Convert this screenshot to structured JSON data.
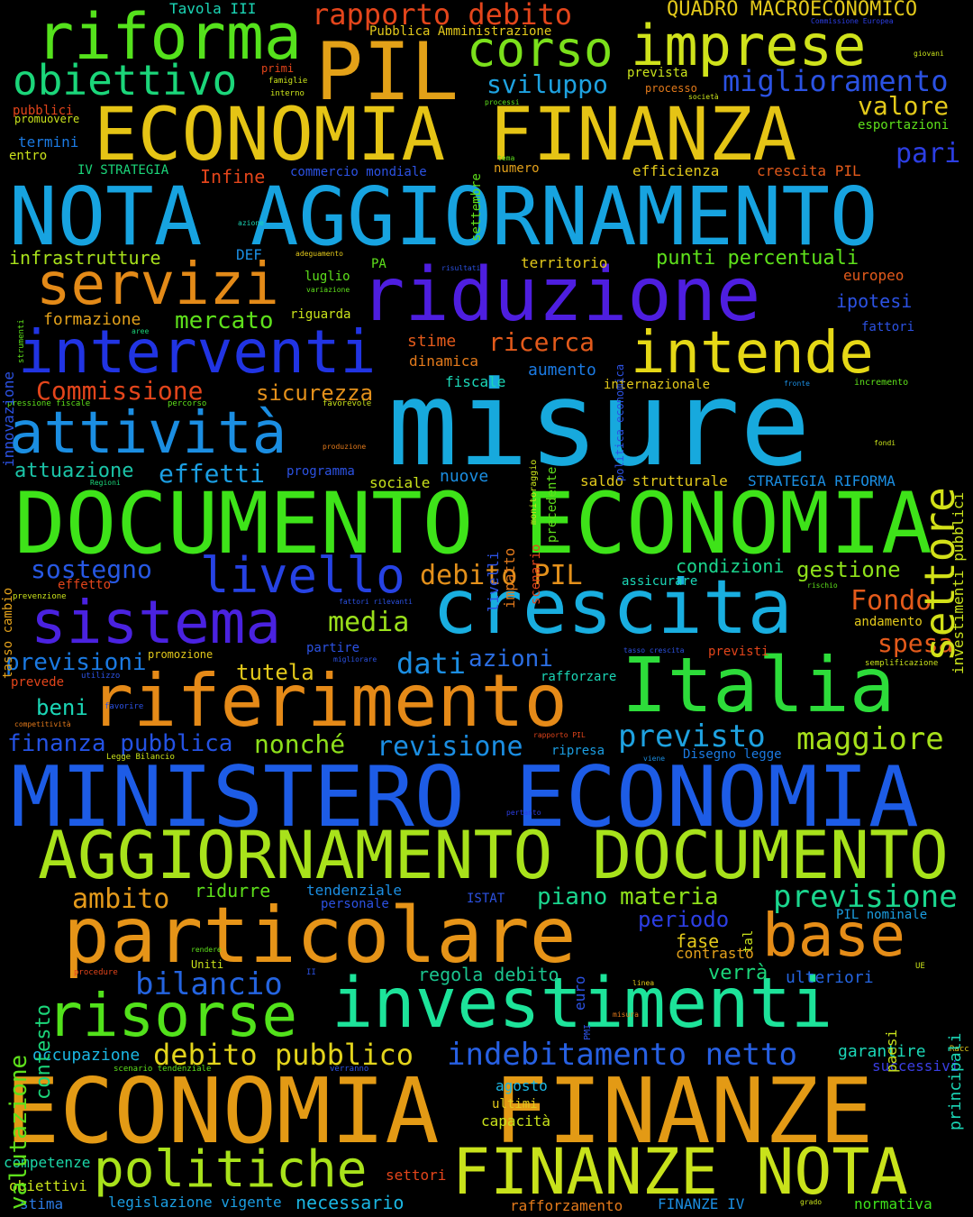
{
  "background": "#000000",
  "words": [
    {
      "text": "misure",
      "color": "#17a9dd"
    },
    {
      "text": "MINISTERO ECONOMIA",
      "color": "#1d5ce6"
    },
    {
      "text": "NOTA AGGIORNAMENTO",
      "color": "#17a3e0"
    },
    {
      "text": "ECONOMIA FINANZE",
      "color": "#e39a15"
    },
    {
      "text": "DOCUMENTO ECONOMIA",
      "color": "#3ee319"
    },
    {
      "text": "ECONOMIA FINANZA",
      "color": "#e5c415"
    },
    {
      "text": "AGGIORNAMENTO DOCUMENTO",
      "color": "#a8e21b"
    },
    {
      "text": "crescita",
      "color": "#19aee0"
    },
    {
      "text": "particolare",
      "color": "#e69418"
    },
    {
      "text": "riduzione",
      "color": "#4e1ee0"
    },
    {
      "text": "investimenti",
      "color": "#1de39a"
    },
    {
      "text": "riferimento",
      "color": "#e58a18"
    },
    {
      "text": "Italia",
      "color": "#2ddc3a"
    },
    {
      "text": "FINANZE NOTA",
      "color": "#c8e21b"
    },
    {
      "text": "sistema",
      "color": "#4a22e0"
    },
    {
      "text": "interventi",
      "color": "#2134e3"
    },
    {
      "text": "attività",
      "color": "#1b8ee2"
    },
    {
      "text": "PIL",
      "color": "#e3a118"
    },
    {
      "text": "riforma",
      "color": "#55e21c"
    },
    {
      "text": "imprese",
      "color": "#cfe21b"
    },
    {
      "text": "servizi",
      "color": "#e38a18"
    },
    {
      "text": "risorse",
      "color": "#52e21b"
    },
    {
      "text": "politiche",
      "color": "#a8e21b"
    },
    {
      "text": "intende",
      "color": "#e5d816"
    },
    {
      "text": "settore",
      "color": "#d2e018"
    },
    {
      "text": "base",
      "color": "#e58d18"
    },
    {
      "text": "livello",
      "color": "#2642e3"
    },
    {
      "text": "corso",
      "color": "#7be01b"
    },
    {
      "text": "obiettivo",
      "color": "#1bd67a"
    },
    {
      "text": "maggiore",
      "color": "#a6e01b"
    },
    {
      "text": "previsione",
      "color": "#1bd68e"
    },
    {
      "text": "indebitamento netto",
      "color": "#2760e3"
    },
    {
      "text": "debito pubblico",
      "color": "#e3d41c"
    },
    {
      "text": "bilancio",
      "color": "#2464e0"
    },
    {
      "text": "previsto",
      "color": "#1ea2e0"
    },
    {
      "text": "revisione",
      "color": "#1b8ee2"
    },
    {
      "text": "ricerca",
      "color": "#e35a1b"
    },
    {
      "text": "rapporto debito",
      "color": "#e3451b"
    },
    {
      "text": "miglioramento",
      "color": "#2b52e3"
    },
    {
      "text": "QUADRO MACROECONOMICO",
      "color": "#e3c91b"
    },
    {
      "text": "sviluppo",
      "color": "#1ea2e0"
    },
    {
      "text": "valore",
      "color": "#e3c91b"
    },
    {
      "text": "pari",
      "color": "#2c3ee3"
    },
    {
      "text": "Commissione",
      "color": "#e3451b"
    },
    {
      "text": "sicurezza",
      "color": "#e3901b"
    },
    {
      "text": "effetti",
      "color": "#1b9ee2"
    },
    {
      "text": "attuazione",
      "color": "#1bc4a8"
    },
    {
      "text": "sostegno",
      "color": "#2758e3"
    },
    {
      "text": "debito PIL",
      "color": "#e3901b"
    },
    {
      "text": "media",
      "color": "#9ae01b"
    },
    {
      "text": "Fondo",
      "color": "#e35a1b"
    },
    {
      "text": "spesa",
      "color": "#e35a1b"
    },
    {
      "text": "gestione",
      "color": "#8ee01b"
    },
    {
      "text": "condizioni",
      "color": "#1bd68e"
    },
    {
      "text": "dati",
      "color": "#1b8ee2"
    },
    {
      "text": "azioni",
      "color": "#2b6ee3"
    },
    {
      "text": "tutela",
      "color": "#e3c91b"
    },
    {
      "text": "previsioni",
      "color": "#1b7ae2"
    },
    {
      "text": "beni",
      "color": "#1bd6b6"
    },
    {
      "text": "finanza pubblica",
      "color": "#2452e3"
    },
    {
      "text": "nonché",
      "color": "#8ee01b"
    },
    {
      "text": "ambito",
      "color": "#e39a1b"
    },
    {
      "text": "ridurre",
      "color": "#5ee01b"
    },
    {
      "text": "piano",
      "color": "#1bd68e"
    },
    {
      "text": "materia",
      "color": "#8ee01b"
    },
    {
      "text": "periodo",
      "color": "#2c3ee3"
    },
    {
      "text": "fase",
      "color": "#e3c91b"
    },
    {
      "text": "contrasto",
      "color": "#e3a11b"
    },
    {
      "text": "verrà",
      "color": "#1bd67a"
    },
    {
      "text": "ulteriori",
      "color": "#2464e0"
    },
    {
      "text": "regola debito",
      "color": "#1bc48e"
    },
    {
      "text": "occupazione",
      "color": "#1bb6e2"
    },
    {
      "text": "garantire",
      "color": "#1bd6b6"
    },
    {
      "text": "successivi",
      "color": "#3a3ee3"
    },
    {
      "text": "agosto",
      "color": "#1bb6e2"
    },
    {
      "text": "ultimi",
      "color": "#e3c91b"
    },
    {
      "text": "capacità",
      "color": "#c9e21b"
    },
    {
      "text": "competenze",
      "color": "#1bd6a8"
    },
    {
      "text": "obiettivi",
      "color": "#c9e21b"
    },
    {
      "text": "settori",
      "color": "#e3451b"
    },
    {
      "text": "stima",
      "color": "#2b7ae3"
    },
    {
      "text": "legislazione vigente",
      "color": "#1b9ee2"
    },
    {
      "text": "necessario",
      "color": "#1bb6e2"
    },
    {
      "text": "rafforzamento",
      "color": "#e37a1b"
    },
    {
      "text": "FINANZE IV",
      "color": "#1b8ee2"
    },
    {
      "text": "normativa",
      "color": "#3ee31b"
    },
    {
      "text": "formazione",
      "color": "#e3a11b"
    },
    {
      "text": "mercato",
      "color": "#5ee01b"
    },
    {
      "text": "infrastrutture",
      "color": "#a8e21b"
    },
    {
      "text": "punti percentuali",
      "color": "#5ee01b"
    },
    {
      "text": "territorio",
      "color": "#e3c91b"
    },
    {
      "text": "europeo",
      "color": "#e35a1b"
    },
    {
      "text": "ipotesi",
      "color": "#2c52e3"
    },
    {
      "text": "stime",
      "color": "#e35a1b"
    },
    {
      "text": "dinamica",
      "color": "#e37a1b"
    },
    {
      "text": "aumento",
      "color": "#1b7ae2"
    },
    {
      "text": "fiscale",
      "color": "#1bd6b6"
    },
    {
      "text": "internazionale",
      "color": "#e3c91b"
    },
    {
      "text": "nuove",
      "color": "#1b8ee2"
    },
    {
      "text": "sociale",
      "color": "#c9e21b"
    },
    {
      "text": "saldo strutturale",
      "color": "#e3c91b"
    },
    {
      "text": "STRATEGIA RIFORMA",
      "color": "#1b8ee2"
    },
    {
      "text": "programma",
      "color": "#2c52e3"
    },
    {
      "text": "assicurare",
      "color": "#1bd6b6"
    },
    {
      "text": "andamento",
      "color": "#e3c91b"
    },
    {
      "text": "partire",
      "color": "#2c52e3"
    },
    {
      "text": "previsti",
      "color": "#e3451b"
    },
    {
      "text": "rafforzare",
      "color": "#1bd6b6"
    },
    {
      "text": "ripresa",
      "color": "#1b9ee2"
    },
    {
      "text": "Disegno legge",
      "color": "#1b7ae2"
    },
    {
      "text": "prevede",
      "color": "#e3451b"
    },
    {
      "text": "promozione",
      "color": "#e3c91b"
    },
    {
      "text": "Tavola III",
      "color": "#1bd6b6"
    },
    {
      "text": "Pubblica Amministrazione",
      "color": "#e3c91b"
    },
    {
      "text": "primi",
      "color": "#e3451b"
    },
    {
      "text": "famiglie",
      "color": "#c9e21b"
    },
    {
      "text": "interno",
      "color": "#c9e21b"
    },
    {
      "text": "pubblici",
      "color": "#e3451b"
    },
    {
      "text": "promuovere",
      "color": "#c9e21b"
    },
    {
      "text": "termini",
      "color": "#1b7ae2"
    },
    {
      "text": "entro",
      "color": "#c9e21b"
    },
    {
      "text": "IV STRATEGIA",
      "color": "#1bd67a"
    },
    {
      "text": "Infine",
      "color": "#e3451b"
    },
    {
      "text": "commercio mondiale",
      "color": "#2c52e3"
    },
    {
      "text": "numero",
      "color": "#e3a11b"
    },
    {
      "text": "efficienza",
      "color": "#e3c91b"
    },
    {
      "text": "crescita PIL",
      "color": "#e35a1b"
    },
    {
      "text": "prevista",
      "color": "#c9e21b"
    },
    {
      "text": "processo",
      "color": "#e37a1b"
    },
    {
      "text": "esportazioni",
      "color": "#5ee01b"
    },
    {
      "text": "processi",
      "color": "#5ee01b"
    },
    {
      "text": "società",
      "color": "#c9e21b"
    },
    {
      "text": "giovani",
      "color": "#c9e21b"
    },
    {
      "text": "Commissione Europea",
      "color": "#2c3ee3"
    },
    {
      "text": "azione",
      "color": "#1bd6b6"
    },
    {
      "text": "DEF",
      "color": "#1b8ee2"
    },
    {
      "text": "adeguamento",
      "color": "#e3c91b"
    },
    {
      "text": "luglio",
      "color": "#5ee01b"
    },
    {
      "text": "variazione",
      "color": "#5ee01b"
    },
    {
      "text": "PA",
      "color": "#5ee01b"
    },
    {
      "text": "risultati",
      "color": "#2c52e3"
    },
    {
      "text": "riguarda",
      "color": "#c9e21b"
    },
    {
      "text": "aree",
      "color": "#1bd67a"
    },
    {
      "text": "fattori",
      "color": "#2c52e3"
    },
    {
      "text": "fronte",
      "color": "#1b8ee2"
    },
    {
      "text": "incremento",
      "color": "#5ee01b"
    },
    {
      "text": "pressione fiscale",
      "color": "#5ee01b"
    },
    {
      "text": "percorso",
      "color": "#5ee01b"
    },
    {
      "text": "favorevole",
      "color": "#c9e21b"
    },
    {
      "text": "produzione",
      "color": "#e37a1b"
    },
    {
      "text": "fondi",
      "color": "#c9e21b"
    },
    {
      "text": "Regioni",
      "color": "#1bd67a"
    },
    {
      "text": "effetto",
      "color": "#e3451b"
    },
    {
      "text": "prevenzione",
      "color": "#c9e21b"
    },
    {
      "text": "fattori rilevanti",
      "color": "#2c52e3"
    },
    {
      "text": "rischio",
      "color": "#5ee01b"
    },
    {
      "text": "migliorare",
      "color": "#2c52e3"
    },
    {
      "text": "tasso crescita",
      "color": "#2c52e3"
    },
    {
      "text": "semplificazione",
      "color": "#c9e21b"
    },
    {
      "text": "utilizzo",
      "color": "#2c52e3"
    },
    {
      "text": "favorire",
      "color": "#2c52e3"
    },
    {
      "text": "competitività",
      "color": "#e37a1b"
    },
    {
      "text": "rapporto PIL",
      "color": "#e3451b"
    },
    {
      "text": "Legge Bilancio",
      "color": "#c9e21b"
    },
    {
      "text": "viene",
      "color": "#1b8ee2"
    },
    {
      "text": "pertanto",
      "color": "#2c3ee3"
    },
    {
      "text": "tendenziale",
      "color": "#1b8ee2"
    },
    {
      "text": "personale",
      "color": "#2c52e3"
    },
    {
      "text": "ISTAT",
      "color": "#2c52e3"
    },
    {
      "text": "PIL nominale",
      "color": "#1b9ee2"
    },
    {
      "text": "rendere",
      "color": "#5ee01b"
    },
    {
      "text": "Uniti",
      "color": "#c9e21b"
    },
    {
      "text": "procedure",
      "color": "#e3451b"
    },
    {
      "text": "II",
      "color": "#2c52e3"
    },
    {
      "text": "linea",
      "color": "#e3c91b"
    },
    {
      "text": "misura",
      "color": "#e37a1b"
    },
    {
      "text": "UE",
      "color": "#c9e21b"
    },
    {
      "text": "scenario tendenziale",
      "color": "#5ee01b"
    },
    {
      "text": "verranno",
      "color": "#2c52e3"
    },
    {
      "text": "Racc",
      "color": "#e3c91b"
    },
    {
      "text": "grado",
      "color": "#c9e21b"
    },
    {
      "text": "tema",
      "color": "#5ee01b"
    },
    {
      "text": "settembre",
      "color": "#5ee01b"
    },
    {
      "text": "innovazione",
      "color": "#2c52e3"
    },
    {
      "text": "strumenti",
      "color": "#5ee01b"
    },
    {
      "text": "politica economica",
      "color": "#2c52e3"
    },
    {
      "text": "investimenti pubblici",
      "color": "#c9e21b"
    },
    {
      "text": "monitoraggio",
      "color": "#c9e21b"
    },
    {
      "text": "precedente",
      "color": "#5ee01b"
    },
    {
      "text": "tasso cambio",
      "color": "#e3a11b"
    },
    {
      "text": "livelli",
      "color": "#2c52e3"
    },
    {
      "text": "impatto",
      "color": "#e37a1b"
    },
    {
      "text": "scenario",
      "color": "#e3451b"
    },
    {
      "text": "valutazione",
      "color": "#5ee01b"
    },
    {
      "text": "contesto",
      "color": "#1bd67a"
    },
    {
      "text": "euro",
      "color": "#2c52e3"
    },
    {
      "text": "PMI",
      "color": "#2c52e3"
    },
    {
      "text": "tal",
      "color": "#c9e21b"
    },
    {
      "text": "principali",
      "color": "#1bd6b6"
    },
    {
      "text": "paesi",
      "color": "#c9e21b"
    }
  ]
}
